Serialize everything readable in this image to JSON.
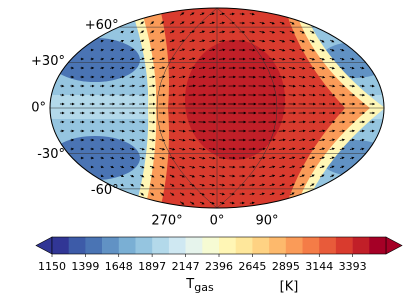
{
  "chart_data": {
    "type": "map",
    "yticks": [
      {
        "value": 60,
        "label": "+60°"
      },
      {
        "value": 30,
        "label": "+30°"
      },
      {
        "value": 0,
        "label": "0°"
      },
      {
        "value": -30,
        "label": "-30°"
      },
      {
        "value": -60,
        "label": "-60°"
      }
    ],
    "xticks": [
      {
        "value": 270,
        "label": "270°"
      },
      {
        "value": 0,
        "label": "0°"
      },
      {
        "value": 90,
        "label": "90°"
      }
    ],
    "colorbar": {
      "clim": [
        1150,
        3642
      ],
      "ticks": [
        1150,
        1399,
        1648,
        1897,
        2147,
        2396,
        2645,
        2895,
        3144,
        3393
      ],
      "label": "T",
      "label_sub": "gas",
      "label_unit": "[K]",
      "colors": [
        "#313695",
        "#3d5ba8",
        "#4a74b4",
        "#6192c4",
        "#7aafd4",
        "#95c5e0",
        "#b3d9ea",
        "#cfe8f2",
        "#e6f4ec",
        "#f6fbd3",
        "#fff6b5",
        "#fee79b",
        "#fed283",
        "#fdb96c",
        "#fa9b58",
        "#f47c47",
        "#e85b3a",
        "#d93b2e",
        "#c11f28",
        "#a50026"
      ]
    }
  }
}
